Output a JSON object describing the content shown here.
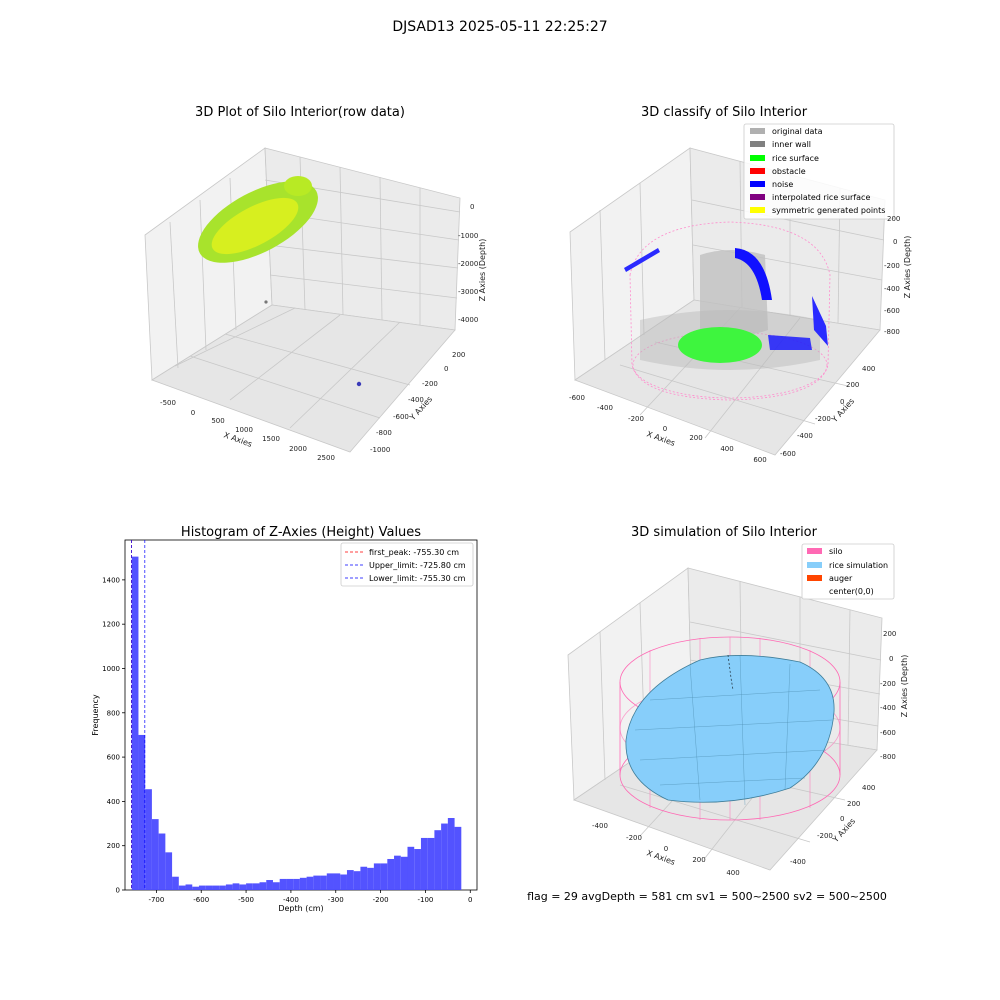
{
  "figure_title": "DJSAD13 2025-05-11 22:25:27",
  "footer": "flag = 29  avgDepth = 581 cm  sv1 = 500~2500  sv2 = 500~2500",
  "colors": {
    "silo": "#ff69b4",
    "rice_simulation": "#87cefa",
    "auger": "#ff4500",
    "original_data": "#b0b0b0",
    "inner_wall": "#808080",
    "rice_surface": "#00ff00",
    "obstacle": "#ff0000",
    "noise": "#0000ff",
    "interpolated_rice_surface": "#800080",
    "symmetric_generated_points": "#ffff00",
    "histogram_bar": "#4a4aff"
  },
  "chart_data": [
    {
      "type": "scatter",
      "title": "3D Plot of Silo Interior(row data)",
      "xlabel": "X Axies",
      "ylabel": "Y Axies",
      "zlabel": "Z Axies (Depth)",
      "x_ticks": [
        "-500",
        "0",
        "500",
        "1000",
        "1500",
        "2000",
        "2500"
      ],
      "y_ticks": [
        "-1000",
        "-800",
        "-600",
        "-400",
        "-200",
        "0",
        "200"
      ],
      "z_ticks": [
        "-4000",
        "-3000",
        "-2000",
        "-1000",
        "0"
      ],
      "grid": true
    },
    {
      "type": "scatter",
      "title": "3D classify of Silo Interior",
      "xlabel": "X Axies",
      "ylabel": "Y Axies",
      "zlabel": "Z Axies (Depth)",
      "x_ticks": [
        "-600",
        "-400",
        "-200",
        "0",
        "200",
        "400",
        "600"
      ],
      "y_ticks": [
        "-600",
        "-400",
        "-200",
        "0",
        "200",
        "400"
      ],
      "z_ticks": [
        "-800",
        "-600",
        "-400",
        "-200",
        "0",
        "200"
      ],
      "legend": [
        "original data",
        "inner wall",
        "rice surface",
        "obstacle",
        "noise",
        "interpolated rice surface",
        "symmetric generated points"
      ],
      "legend_position": "top-right",
      "grid": true
    },
    {
      "type": "bar",
      "title": "Histogram of Z-Axies (Height) Values",
      "xlabel": "Depth (cm)",
      "ylabel": "Frequency",
      "x_ticks": [
        -700,
        -600,
        -500,
        -400,
        -300,
        -200,
        -100,
        0
      ],
      "y_ticks": [
        0,
        200,
        400,
        600,
        800,
        1000,
        1200,
        1400
      ],
      "xlim": [
        -770,
        15
      ],
      "ylim": [
        0,
        1580
      ],
      "bin_width": 15,
      "bins": [
        {
          "x": -755,
          "count": 1505
        },
        {
          "x": -740,
          "count": 700
        },
        {
          "x": -725,
          "count": 455
        },
        {
          "x": -710,
          "count": 320
        },
        {
          "x": -695,
          "count": 255
        },
        {
          "x": -680,
          "count": 170
        },
        {
          "x": -665,
          "count": 60
        },
        {
          "x": -650,
          "count": 20
        },
        {
          "x": -635,
          "count": 25
        },
        {
          "x": -620,
          "count": 15
        },
        {
          "x": -605,
          "count": 20
        },
        {
          "x": -590,
          "count": 20
        },
        {
          "x": -575,
          "count": 20
        },
        {
          "x": -560,
          "count": 20
        },
        {
          "x": -545,
          "count": 25
        },
        {
          "x": -530,
          "count": 30
        },
        {
          "x": -515,
          "count": 25
        },
        {
          "x": -500,
          "count": 30
        },
        {
          "x": -485,
          "count": 30
        },
        {
          "x": -470,
          "count": 35
        },
        {
          "x": -455,
          "count": 45
        },
        {
          "x": -440,
          "count": 35
        },
        {
          "x": -425,
          "count": 50
        },
        {
          "x": -410,
          "count": 50
        },
        {
          "x": -395,
          "count": 50
        },
        {
          "x": -380,
          "count": 55
        },
        {
          "x": -365,
          "count": 60
        },
        {
          "x": -350,
          "count": 65
        },
        {
          "x": -335,
          "count": 65
        },
        {
          "x": -320,
          "count": 75
        },
        {
          "x": -305,
          "count": 75
        },
        {
          "x": -290,
          "count": 70
        },
        {
          "x": -275,
          "count": 90
        },
        {
          "x": -260,
          "count": 85
        },
        {
          "x": -245,
          "count": 105
        },
        {
          "x": -230,
          "count": 100
        },
        {
          "x": -215,
          "count": 120
        },
        {
          "x": -200,
          "count": 120
        },
        {
          "x": -185,
          "count": 140
        },
        {
          "x": -170,
          "count": 155
        },
        {
          "x": -155,
          "count": 150
        },
        {
          "x": -140,
          "count": 195
        },
        {
          "x": -125,
          "count": 185
        },
        {
          "x": -110,
          "count": 235
        },
        {
          "x": -95,
          "count": 235
        },
        {
          "x": -80,
          "count": 270
        },
        {
          "x": -65,
          "count": 300
        },
        {
          "x": -50,
          "count": 325
        },
        {
          "x": -35,
          "count": 285
        }
      ],
      "vlines": [
        {
          "label": "first_peak: -755.30 cm",
          "value": -755.3,
          "color": "#ff0000"
        },
        {
          "label": "Upper_limit: -725.80 cm",
          "value": -725.8,
          "color": "#0000ff"
        },
        {
          "label": "Lower_limit: -755.30 cm",
          "value": -755.3,
          "color": "#0000ff"
        }
      ],
      "legend_position": "top-right"
    },
    {
      "type": "area",
      "title": "3D simulation of Silo Interior",
      "xlabel": "X Axies",
      "ylabel": "Y Axies",
      "zlabel": "Z Axies (Depth)",
      "x_ticks": [
        "-400",
        "-200",
        "0",
        "200",
        "400"
      ],
      "y_ticks": [
        "-400",
        "-200",
        "0",
        "200",
        "400"
      ],
      "z_ticks": [
        "-800",
        "-600",
        "-400",
        "-200",
        "0",
        "200"
      ],
      "legend": [
        "silo",
        "rice simulation",
        "auger",
        "center(0,0)"
      ],
      "legend_position": "top-right",
      "grid": true
    }
  ]
}
